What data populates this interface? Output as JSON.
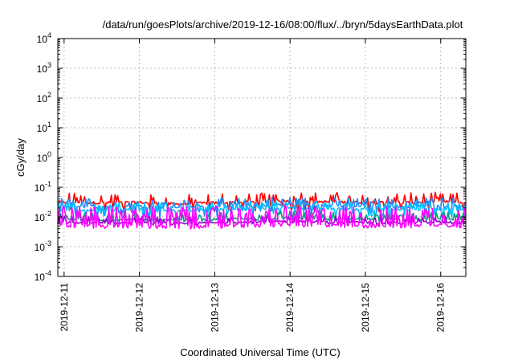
{
  "chart_data": {
    "type": "line",
    "title": "/data/run/goesPlots/archive/2019-12-16/08:00/flux/../bryn/5daysEarthData.plot",
    "xlabel": "Coordinated Universal Time (UTC)",
    "ylabel": "cGy/day",
    "x_range": [
      "2019-12-10T22:00",
      "2019-12-16T08:00"
    ],
    "x_ticks": [
      "2019-12-11",
      "2019-12-12",
      "2019-12-13",
      "2019-12-14",
      "2019-12-15",
      "2019-12-16"
    ],
    "y_scale": "log",
    "ylim": [
      0.0001,
      10000
    ],
    "y_ticks": [
      {
        "base": "10",
        "exp": "-4",
        "value": 0.0001
      },
      {
        "base": "10",
        "exp": "-3",
        "value": 0.001
      },
      {
        "base": "10",
        "exp": "-2",
        "value": 0.01
      },
      {
        "base": "10",
        "exp": "-1",
        "value": 0.1
      },
      {
        "base": "10",
        "exp": "0",
        "value": 1
      },
      {
        "base": "10",
        "exp": "1",
        "value": 10
      },
      {
        "base": "10",
        "exp": "2",
        "value": 100
      },
      {
        "base": "10",
        "exp": "3",
        "value": 1000
      },
      {
        "base": "10",
        "exp": "4",
        "value": 10000
      }
    ],
    "grid": true,
    "legend": "none",
    "series": [
      {
        "color": "#ff0000",
        "x": [
          "2019-12-10T22:00",
          "2019-12-11T12:00",
          "2019-12-12T00:00",
          "2019-12-12T12:00",
          "2019-12-13T00:00",
          "2019-12-13T12:00",
          "2019-12-14T00:00",
          "2019-12-14T12:00",
          "2019-12-15T00:00",
          "2019-12-15T12:00",
          "2019-12-16T00:00",
          "2019-12-16T08:00"
        ],
        "y": [
          0.032,
          0.03,
          0.031,
          0.027,
          0.03,
          0.032,
          0.036,
          0.032,
          0.031,
          0.03,
          0.033,
          0.03
        ]
      },
      {
        "color": "#1e90ff",
        "x": [
          "2019-12-10T22:00",
          "2019-12-11T12:00",
          "2019-12-12T00:00",
          "2019-12-12T12:00",
          "2019-12-13T00:00",
          "2019-12-13T12:00",
          "2019-12-14T00:00",
          "2019-12-14T12:00",
          "2019-12-15T00:00",
          "2019-12-15T12:00",
          "2019-12-16T00:00",
          "2019-12-16T08:00"
        ],
        "y": [
          0.024,
          0.022,
          0.023,
          0.02,
          0.023,
          0.024,
          0.027,
          0.024,
          0.023,
          0.022,
          0.025,
          0.023
        ]
      },
      {
        "color": "#00bfff",
        "x": [
          "2019-12-10T22:00",
          "2019-12-11T12:00",
          "2019-12-12T00:00",
          "2019-12-12T12:00",
          "2019-12-13T00:00",
          "2019-12-13T12:00",
          "2019-12-14T00:00",
          "2019-12-14T12:00",
          "2019-12-15T00:00",
          "2019-12-15T12:00",
          "2019-12-16T00:00",
          "2019-12-16T08:00"
        ],
        "y": [
          0.018,
          0.017,
          0.018,
          0.016,
          0.018,
          0.019,
          0.021,
          0.019,
          0.018,
          0.017,
          0.019,
          0.018
        ]
      },
      {
        "color": "#00a080",
        "x": [
          "2019-12-10T22:00",
          "2019-12-11T12:00",
          "2019-12-12T00:00",
          "2019-12-12T12:00",
          "2019-12-13T00:00",
          "2019-12-13T12:00",
          "2019-12-14T00:00",
          "2019-12-14T12:00",
          "2019-12-15T00:00",
          "2019-12-15T12:00",
          "2019-12-16T00:00",
          "2019-12-16T08:00"
        ],
        "y": [
          0.0085,
          0.008,
          0.0082,
          0.0075,
          0.0082,
          0.0085,
          0.0095,
          0.0085,
          0.0082,
          0.008,
          0.0088,
          0.0082
        ]
      },
      {
        "color": "#9400d3",
        "x": [
          "2019-12-10T22:00",
          "2019-12-11T12:00",
          "2019-12-12T00:00",
          "2019-12-12T12:00",
          "2019-12-13T00:00",
          "2019-12-13T12:00",
          "2019-12-14T00:00",
          "2019-12-14T12:00",
          "2019-12-15T00:00",
          "2019-12-15T12:00",
          "2019-12-16T00:00",
          "2019-12-16T08:00"
        ],
        "y": [
          0.0065,
          0.0062,
          0.0064,
          0.0058,
          0.0064,
          0.0066,
          0.0072,
          0.0066,
          0.0064,
          0.0062,
          0.0068,
          0.0064
        ]
      },
      {
        "color": "#ff00ff",
        "x": [
          "2019-12-10T22:00",
          "2019-12-11T12:00",
          "2019-12-12T00:00",
          "2019-12-12T12:00",
          "2019-12-13T00:00",
          "2019-12-13T12:00",
          "2019-12-14T00:00",
          "2019-12-14T12:00",
          "2019-12-15T00:00",
          "2019-12-15T12:00",
          "2019-12-16T00:00",
          "2019-12-16T08:00"
        ],
        "y": [
          0.005,
          0.0048,
          0.0049,
          0.0045,
          0.0049,
          0.0051,
          0.0055,
          0.0051,
          0.0049,
          0.0048,
          0.0052,
          0.0049
        ]
      }
    ]
  }
}
